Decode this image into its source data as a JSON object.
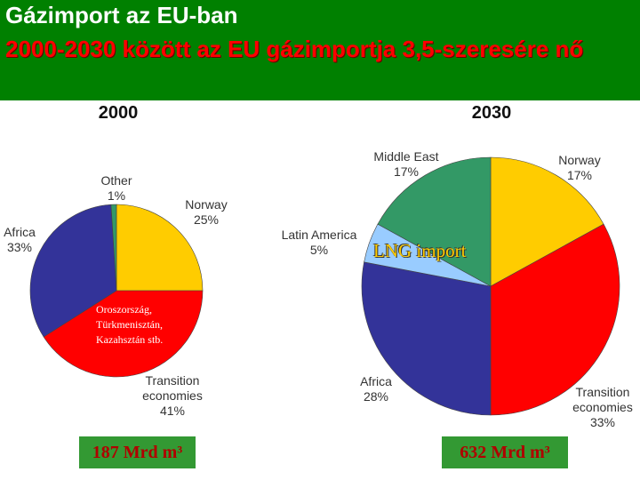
{
  "header": {
    "title": "Gázimport az EU-ban",
    "subtitle": "2000-2030 között az EU gázimportja 3,5-szeresére nő"
  },
  "chart_data": [
    {
      "type": "pie",
      "title": "2000",
      "categories": [
        "Norway",
        "Transition economies",
        "Africa",
        "Other"
      ],
      "values": [
        25,
        41,
        33,
        1
      ],
      "value_labels": [
        "25%",
        "41%",
        "33%",
        "1%"
      ],
      "colors": [
        "#ffcc00",
        "#ff0000",
        "#333399",
        "#339966"
      ],
      "annotation": "Oroszország, Türkmenisztán, Kazahsztán stb.",
      "total_label": "187 Mrd m³"
    },
    {
      "type": "pie",
      "title": "2030",
      "categories": [
        "Norway",
        "Transition economies",
        "Africa",
        "Latin America",
        "Middle East"
      ],
      "values": [
        17,
        33,
        28,
        5,
        17
      ],
      "value_labels": [
        "17%",
        "33%",
        "28%",
        "5%",
        "17%"
      ],
      "colors": [
        "#ffcc00",
        "#ff0000",
        "#333399",
        "#99ccff",
        "#339966"
      ],
      "annotation": "LNG import",
      "total_label": "632 Mrd m³"
    }
  ]
}
